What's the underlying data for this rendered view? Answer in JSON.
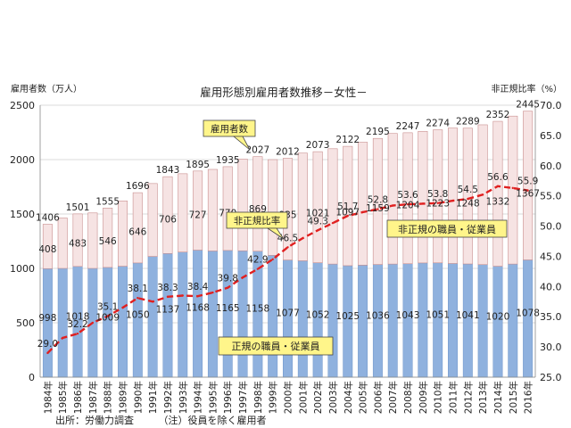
{
  "chart_data": {
    "type": "bar",
    "title": "雇用形態別雇用者数推移－女性－",
    "ylabel_left": "雇用者数（万人）",
    "ylabel_right": "非正規比率（%）",
    "ylim_left": [
      0,
      2500
    ],
    "yticks_left": [
      "0",
      "500",
      "1000",
      "1500",
      "2000",
      "2500"
    ],
    "ylim_right": [
      25.0,
      70.0
    ],
    "yticks_right": [
      "25.0",
      "30.0",
      "35.0",
      "40.0",
      "45.0",
      "50.0",
      "55.0",
      "60.0",
      "65.0",
      "70.0"
    ],
    "grid": true,
    "categories": [
      "1984年",
      "1985年",
      "1986年",
      "1987年",
      "1988年",
      "1989年",
      "1990年",
      "1991年",
      "1992年",
      "1993年",
      "1994年",
      "1995年",
      "1996年",
      "1997年",
      "1998年",
      "1999年",
      "2000年",
      "2001年",
      "2002年",
      "2003年",
      "2004年",
      "2005年",
      "2006年",
      "2007年",
      "2008年",
      "2009年",
      "2010年",
      "2011年",
      "2012年",
      "2013年",
      "2014年",
      "2015年",
      "2016年"
    ],
    "totals": [
      1406,
      1463,
      1501,
      1510,
      1555,
      1620,
      1696,
      1780,
      1843,
      1870,
      1895,
      1910,
      1935,
      2005,
      2027,
      2000,
      2012,
      2060,
      2073,
      2100,
      2122,
      2160,
      2195,
      2240,
      2247,
      2260,
      2274,
      2290,
      2289,
      2320,
      2352,
      2400,
      2445
    ],
    "total_labels": [
      "1406",
      null,
      "1501",
      null,
      "1555",
      null,
      "1696",
      null,
      "1843",
      null,
      "1895",
      null,
      "1935",
      null,
      "2027",
      null,
      "2012",
      null,
      "2073",
      null,
      "2122",
      null,
      "2195",
      null,
      "2247",
      null,
      "2274",
      null,
      "2289",
      null,
      "2352",
      null,
      "2445"
    ],
    "series": [
      {
        "name": "正規の職員・従業員",
        "color": "#8fb1de",
        "values": [
          998,
          1000,
          1018,
          1000,
          1009,
          1020,
          1050,
          1110,
          1137,
          1150,
          1168,
          1160,
          1165,
          1162,
          1158,
          1120,
          1077,
          1070,
          1052,
          1040,
          1025,
          1030,
          1036,
          1040,
          1043,
          1050,
          1051,
          1045,
          1041,
          1035,
          1020,
          1040,
          1078
        ],
        "labels": [
          "998",
          null,
          "1018",
          null,
          "1009",
          null,
          "1050",
          null,
          "1137",
          null,
          "1168",
          null,
          "1165",
          null,
          "1158",
          null,
          "1077",
          null,
          "1052",
          null,
          "1025",
          null,
          "1036",
          null,
          "1043",
          null,
          "1051",
          null,
          "1041",
          null,
          "1020",
          null,
          "1078"
        ]
      },
      {
        "name": "非正規の職員・従業員",
        "color": "#f6e3e3",
        "values": [
          408,
          463,
          483,
          510,
          546,
          600,
          646,
          670,
          706,
          720,
          727,
          750,
          770,
          843,
          869,
          880,
          935,
          990,
          1021,
          1060,
          1097,
          1130,
          1159,
          1200,
          1204,
          1210,
          1223,
          1245,
          1248,
          1285,
          1332,
          1360,
          1367
        ],
        "labels": [
          "408",
          null,
          "483",
          null,
          "546",
          null,
          "646",
          null,
          "706",
          null,
          "727",
          null,
          "770",
          null,
          "869",
          null,
          "935",
          null,
          "1021",
          null,
          "1097",
          null,
          "1159",
          null,
          "1204",
          null,
          "1223",
          null,
          "1248",
          null,
          "1332",
          null,
          "1367"
        ]
      }
    ],
    "ratio": {
      "name": "非正規比率",
      "color": "#e02020",
      "values": [
        29.0,
        31.5,
        32.2,
        34.0,
        35.1,
        36.5,
        38.1,
        37.5,
        38.3,
        38.5,
        38.4,
        39.0,
        39.8,
        41.5,
        42.9,
        44.5,
        46.5,
        48.0,
        49.3,
        50.5,
        51.7,
        52.3,
        52.8,
        53.4,
        53.6,
        53.7,
        53.8,
        54.2,
        54.5,
        55.2,
        56.6,
        56.3,
        55.9
      ],
      "labels": [
        "29.0",
        null,
        "32.2",
        null,
        "35.1",
        null,
        "38.1",
        null,
        "38.3",
        null,
        "38.4",
        null,
        "39.8",
        null,
        "42.9",
        null,
        "46.5",
        null,
        "49.3",
        null,
        "51.7",
        null,
        "52.8",
        null,
        "53.6",
        null,
        "53.8",
        null,
        "54.5",
        null,
        "56.6",
        null,
        "55.9"
      ]
    },
    "callouts": {
      "employees": "雇用者数",
      "ratio": "非正規比率",
      "nonregular": "非正規の職員・従業員",
      "regular": "正規の職員・従業員"
    },
    "source": "出所：労働力調査　　　（注）役員を除く雇用者"
  }
}
